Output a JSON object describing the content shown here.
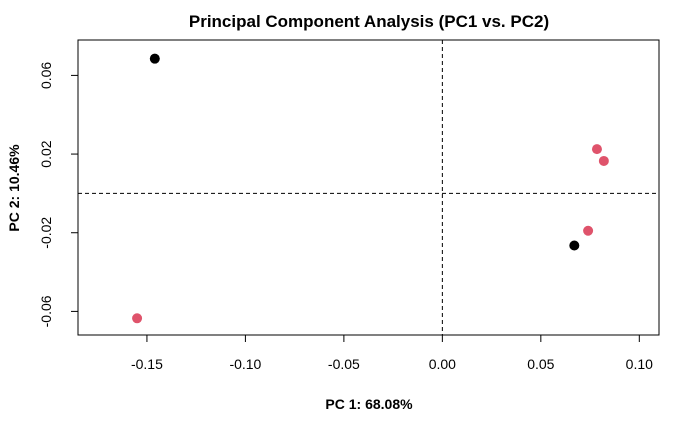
{
  "chart_data": {
    "type": "scatter",
    "title": "Principal Component Analysis (PC1 vs. PC2)",
    "xlabel": "PC 1: 68.08%",
    "ylabel": "PC 2: 10.46%",
    "xlim": [
      -0.185,
      0.11
    ],
    "ylim": [
      -0.072,
      0.078
    ],
    "xticks": [
      -0.15,
      -0.1,
      -0.05,
      0.0,
      0.05,
      0.1
    ],
    "xtick_labels": [
      "-0.15",
      "-0.10",
      "-0.05",
      "0.00",
      "0.05",
      "0.10"
    ],
    "yticks": [
      -0.06,
      -0.02,
      0.02,
      0.06
    ],
    "ytick_labels": [
      "-0.06",
      "-0.02",
      "0.02",
      "0.06"
    ],
    "reference_lines": {
      "x": 0.0,
      "y": 0.0,
      "style": "dashed"
    },
    "grid": false,
    "legend": "none",
    "points": [
      {
        "x": -0.146,
        "y": 0.0685,
        "color": "#000000"
      },
      {
        "x": 0.067,
        "y": -0.0265,
        "color": "#000000"
      },
      {
        "x": -0.155,
        "y": -0.0635,
        "color": "#DF536B"
      },
      {
        "x": 0.0785,
        "y": 0.0225,
        "color": "#DF536B"
      },
      {
        "x": 0.082,
        "y": 0.0165,
        "color": "#DF536B"
      },
      {
        "x": 0.074,
        "y": -0.019,
        "color": "#DF536B"
      }
    ]
  }
}
